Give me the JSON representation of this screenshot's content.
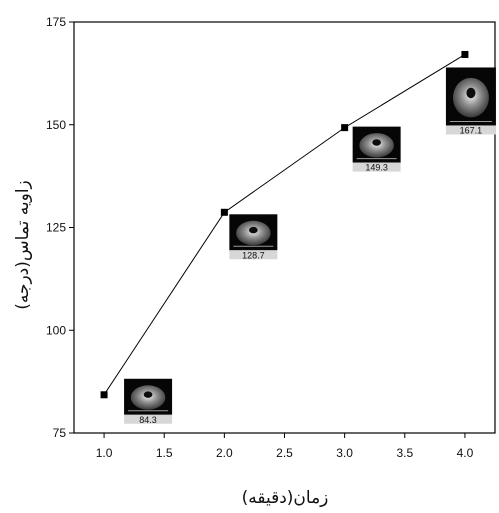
{
  "chart_data": {
    "type": "line",
    "title": "",
    "xlabel": "زمان(دقیقه)",
    "ylabel": "زاویه تماس(درجه)",
    "xlim": [
      0.75,
      4.25
    ],
    "ylim": [
      75,
      175
    ],
    "x_ticks": [
      "1.0",
      "1.5",
      "2.0",
      "2.5",
      "3.0",
      "3.5",
      "4.0"
    ],
    "y_ticks": [
      "75",
      "100",
      "125",
      "150",
      "175"
    ],
    "grid": false,
    "legend": "none",
    "series": [
      {
        "x": [
          1.0,
          2.0,
          3.0,
          4.0
        ],
        "y": [
          84.3,
          128.7,
          149.3,
          167.1
        ],
        "marker": "square",
        "color": "#000000"
      }
    ],
    "annotations": [
      {
        "x": 1.0,
        "y": 84.3,
        "text": "84.3",
        "inset": "droplet-photo"
      },
      {
        "x": 2.0,
        "y": 128.7,
        "text": "128.7",
        "inset": "droplet-photo"
      },
      {
        "x": 3.0,
        "y": 149.3,
        "text": "149.3",
        "inset": "droplet-photo"
      },
      {
        "x": 4.0,
        "y": 167.1,
        "text": "167.1",
        "inset": "droplet-photo"
      }
    ]
  }
}
